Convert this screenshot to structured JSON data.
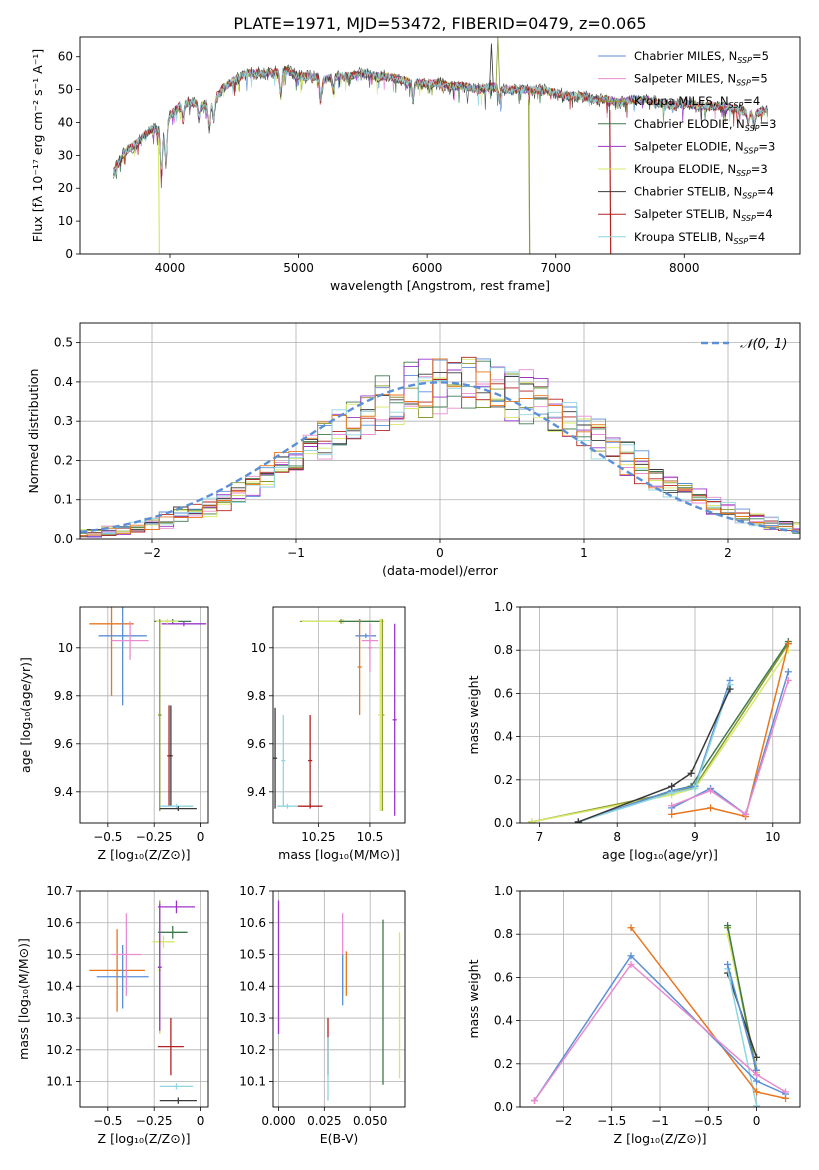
{
  "figure_title": "PLATE=1971, MJD=53472, FIBERID=0479, z=0.065",
  "colors": {
    "cmiles": "#5b8fd6",
    "smiles": "#e98bd0",
    "kmiles": "#8a9a2a",
    "celodie": "#3f7a4f",
    "selodie": "#9b35c9",
    "kelodie": "#d8e86a",
    "cstelib": "#3a3a3a",
    "sstelib": "#b22222",
    "kstelib": "#8fd6e0",
    "orange": "#e8761e"
  },
  "chart_data": [
    {
      "id": "spectrum",
      "type": "line",
      "title": "PLATE=1971, MJD=53472, FIBERID=0479, z=0.065",
      "xlabel": "wavelength [Angstrom, rest frame]",
      "ylabel": "Flux [fλ 10⁻¹⁷ erg cm⁻² s⁻¹ A⁻¹]",
      "xlim": [
        3300,
        8900
      ],
      "ylim": [
        0,
        66
      ],
      "xticks": [
        4000,
        5000,
        6000,
        7000,
        8000
      ],
      "yticks": [
        0,
        10,
        20,
        30,
        40,
        50,
        60
      ],
      "grid": false,
      "legend_position": "top-right",
      "legend": [
        {
          "label": "Chabrier MILES, N",
          "sub": "SSP",
          "val": "=5",
          "color": "#5b8fd6"
        },
        {
          "label": "Salpeter MILES, N",
          "sub": "SSP",
          "val": "=5",
          "color": "#e98bd0"
        },
        {
          "label": "Kroupa MILES, N",
          "sub": "SSP",
          "val": "=4",
          "color": "#8a9a2a"
        },
        {
          "label": "Chabrier ELODIE, N",
          "sub": "SSP",
          "val": "=3",
          "color": "#3f7a4f"
        },
        {
          "label": "Salpeter ELODIE, N",
          "sub": "SSP",
          "val": "=3",
          "color": "#9b35c9"
        },
        {
          "label": "Kroupa ELODIE, N",
          "sub": "SSP",
          "val": "=3",
          "color": "#d8e86a"
        },
        {
          "label": "Chabrier STELIB, N",
          "sub": "SSP",
          "val": "=4",
          "color": "#3a3a3a"
        },
        {
          "label": "Salpeter STELIB, N",
          "sub": "SSP",
          "val": "=4",
          "color": "#b22222"
        },
        {
          "label": "Kroupa STELIB, N",
          "sub": "SSP",
          "val": "=4",
          "color": "#8fd6e0"
        }
      ],
      "spectrum_knots": [
        [
          3560,
          25
        ],
        [
          3650,
          31
        ],
        [
          3750,
          34
        ],
        [
          3850,
          38
        ],
        [
          3950,
          38
        ],
        [
          4000,
          42
        ],
        [
          4100,
          46
        ],
        [
          4200,
          46
        ],
        [
          4300,
          45
        ],
        [
          4400,
          50
        ],
        [
          4500,
          53
        ],
        [
          4600,
          55
        ],
        [
          4700,
          55
        ],
        [
          4800,
          55
        ],
        [
          4900,
          56
        ],
        [
          5000,
          54
        ],
        [
          5100,
          54
        ],
        [
          5200,
          53
        ],
        [
          5300,
          54
        ],
        [
          5400,
          54
        ],
        [
          5500,
          55
        ],
        [
          5600,
          54
        ],
        [
          5700,
          54
        ],
        [
          5800,
          53
        ],
        [
          5900,
          52
        ],
        [
          6000,
          52
        ],
        [
          6100,
          52
        ],
        [
          6200,
          51
        ],
        [
          6300,
          51
        ],
        [
          6400,
          50
        ],
        [
          6500,
          51
        ],
        [
          6600,
          50
        ],
        [
          6700,
          50
        ],
        [
          6800,
          50
        ],
        [
          6900,
          50
        ],
        [
          7000,
          49
        ],
        [
          7100,
          48
        ],
        [
          7200,
          48
        ],
        [
          7300,
          47
        ],
        [
          7400,
          47
        ],
        [
          7500,
          46
        ],
        [
          7600,
          47
        ],
        [
          7700,
          47
        ],
        [
          7800,
          46
        ],
        [
          7900,
          45
        ],
        [
          8000,
          46
        ],
        [
          8100,
          45
        ],
        [
          8200,
          45
        ],
        [
          8300,
          45
        ],
        [
          8400,
          44
        ],
        [
          8500,
          43
        ],
        [
          8600,
          43
        ],
        [
          8650,
          44
        ]
      ],
      "absorption_lines": [
        [
          3934,
          14
        ],
        [
          3969,
          12
        ],
        [
          4102,
          6
        ],
        [
          4227,
          4
        ],
        [
          4304,
          7
        ],
        [
          4340,
          6
        ],
        [
          4861,
          7
        ],
        [
          5175,
          6
        ],
        [
          5270,
          4
        ],
        [
          5890,
          5
        ],
        [
          6563,
          3
        ],
        [
          8498,
          3
        ],
        [
          8542,
          4
        ],
        [
          8662,
          3
        ]
      ],
      "dropouts": [
        [
          3910,
          "#d8e86a"
        ],
        [
          6790,
          "#8a9a2a"
        ],
        [
          7420,
          "#b22222"
        ]
      ],
      "spikes": [
        [
          6500,
          64,
          "#3a3a3a"
        ],
        [
          6550,
          66,
          "#8a9a2a"
        ]
      ]
    },
    {
      "id": "residuals",
      "type": "histogram",
      "xlabel": "(data-model)/error",
      "ylabel": "Normed distribution",
      "xlim": [
        -2.5,
        2.5
      ],
      "ylim": [
        0,
        0.55
      ],
      "xticks": [
        -2,
        -1,
        0,
        1,
        2
      ],
      "yticks": [
        0.0,
        0.1,
        0.2,
        0.3,
        0.4,
        0.5
      ],
      "grid": true,
      "legend_position": "top-right",
      "legend": "𝒩(0, 1)",
      "bin_width": 0.1,
      "normal_curve": {
        "mu": 0,
        "sigma": 1
      }
    },
    {
      "id": "age-vs-Z",
      "type": "errorbar",
      "xlabel": "Z [log₁₀(Z/Z⊙)]",
      "ylabel": "age  [log₁₀(age/yr)]",
      "xlim": [
        -0.65,
        0.04
      ],
      "ylim": [
        9.27,
        10.17
      ],
      "xticks": [
        -0.5,
        -0.25,
        0.0
      ],
      "yticks": [
        9.4,
        9.6,
        9.8,
        10.0
      ],
      "grid": true,
      "points": [
        {
          "x": -0.48,
          "xerr": 0.12,
          "y": 10.1,
          "yerr": 0.3,
          "color": "#e8761e"
        },
        {
          "x": -0.42,
          "xerr": 0.13,
          "y": 10.05,
          "yerr": 0.29,
          "color": "#5b8fd6"
        },
        {
          "x": -0.38,
          "xerr": 0.1,
          "y": 10.03,
          "yerr": 0.08,
          "color": "#e98bd0"
        },
        {
          "x": -0.15,
          "xerr": 0.1,
          "y": 10.11,
          "yerr": 0.01,
          "color": "#3f7a4f"
        },
        {
          "x": -0.09,
          "xerr": 0.12,
          "y": 10.1,
          "yerr": 0.01,
          "color": "#9b35c9"
        },
        {
          "x": -0.18,
          "xerr": 0.06,
          "y": 10.11,
          "yerr": 0.01,
          "color": "#d8e86a"
        },
        {
          "x": -0.22,
          "xerr": 0.01,
          "y": 9.72,
          "yerr": 0.4,
          "color": "#8a9a2a"
        },
        {
          "x": -0.17,
          "xerr": 0.01,
          "y": 9.55,
          "yerr": 0.21,
          "color": "#b22222"
        },
        {
          "x": -0.16,
          "xerr": 0.01,
          "y": 9.55,
          "yerr": 0.21,
          "color": "#3a3a3a"
        },
        {
          "x": -0.13,
          "xerr": 0.09,
          "y": 9.34,
          "yerr": 0.01,
          "color": "#8fd6e0"
        },
        {
          "x": -0.12,
          "xerr": 0.1,
          "y": 9.33,
          "yerr": 0.01,
          "color": "#3a3a3a"
        }
      ]
    },
    {
      "id": "age-vs-mass",
      "type": "errorbar",
      "xlabel": "mass [log₁₀(M/M⊙)]",
      "ylabel": "",
      "xlim": [
        10.03,
        10.67
      ],
      "ylim": [
        9.27,
        10.17
      ],
      "xticks": [
        10.25,
        10.5
      ],
      "yticks": [
        9.4,
        9.6,
        9.8,
        10.0
      ],
      "grid": true,
      "points": [
        {
          "x": 10.36,
          "xerr": 0.2,
          "y": 10.11,
          "yerr": 0.01,
          "color": "#8a9a2a"
        },
        {
          "x": 10.37,
          "xerr": 0.2,
          "y": 10.11,
          "yerr": 0.01,
          "color": "#d8e86a"
        },
        {
          "x": 10.45,
          "xerr": 0.1,
          "y": 10.11,
          "yerr": 0.01,
          "color": "#3f7a4f"
        },
        {
          "x": 10.48,
          "xerr": 0.05,
          "y": 10.05,
          "yerr": 0.01,
          "color": "#5b8fd6"
        },
        {
          "x": 10.5,
          "xerr": 0.04,
          "y": 10.03,
          "yerr": 0.01,
          "color": "#e98bd0"
        },
        {
          "x": 10.45,
          "xerr": 0.01,
          "y": 9.92,
          "yerr": 0.2,
          "color": "#e8761e"
        },
        {
          "x": 10.5,
          "xerr": 0.01,
          "y": 10.0,
          "yerr": 0.1,
          "color": "#e98bd0"
        },
        {
          "x": 10.56,
          "xerr": 0.01,
          "y": 9.72,
          "yerr": 0.4,
          "color": "#8a9a2a"
        },
        {
          "x": 10.62,
          "xerr": 0.01,
          "y": 9.7,
          "yerr": 0.4,
          "color": "#9b35c9"
        },
        {
          "x": 10.55,
          "xerr": 0.01,
          "y": 9.72,
          "yerr": 0.4,
          "color": "#d8e86a"
        },
        {
          "x": 10.21,
          "xerr": 0.01,
          "y": 9.53,
          "yerr": 0.19,
          "color": "#b22222"
        },
        {
          "x": 10.21,
          "xerr": 0.06,
          "y": 9.34,
          "yerr": 0.01,
          "color": "#b22222"
        },
        {
          "x": 10.08,
          "xerr": 0.01,
          "y": 9.53,
          "yerr": 0.19,
          "color": "#8fd6e0"
        },
        {
          "x": 10.1,
          "xerr": 0.05,
          "y": 9.34,
          "yerr": 0.01,
          "color": "#8fd6e0"
        },
        {
          "x": 10.04,
          "xerr": 0.01,
          "y": 9.54,
          "yerr": 0.21,
          "color": "#3a3a3a"
        }
      ]
    },
    {
      "id": "weight-vs-age",
      "type": "line",
      "xlabel": "age  [log₁₀(age/yr)]",
      "ylabel": "mass weight",
      "xlim": [
        6.75,
        10.35
      ],
      "ylim": [
        0,
        1
      ],
      "xticks": [
        7,
        8,
        9,
        10
      ],
      "yticks": [
        0.0,
        0.2,
        0.4,
        0.6,
        0.8,
        1.0
      ],
      "grid": true,
      "series": [
        {
          "color": "#8a9a2a",
          "x": [
            6.9,
            8.7,
            9.0,
            10.2
          ],
          "y": [
            0.005,
            0.14,
            0.17,
            0.83
          ]
        },
        {
          "color": "#d8e86a",
          "x": [
            6.9,
            8.7,
            9.0,
            10.2
          ],
          "y": [
            0.005,
            0.13,
            0.16,
            0.8
          ]
        },
        {
          "color": "#3f7a4f",
          "x": [
            7.5,
            8.7,
            8.95,
            10.2
          ],
          "y": [
            0.005,
            0.15,
            0.17,
            0.84
          ]
        },
        {
          "color": "#5b8fd6",
          "x": [
            7.5,
            8.7,
            9.0,
            9.45
          ],
          "y": [
            0.005,
            0.15,
            0.17,
            0.66
          ]
        },
        {
          "color": "#8fd6e0",
          "x": [
            7.5,
            8.7,
            9.0,
            9.45
          ],
          "y": [
            0.005,
            0.14,
            0.16,
            0.64
          ]
        },
        {
          "color": "#3a3a3a",
          "x": [
            7.5,
            8.7,
            8.95,
            9.45
          ],
          "y": [
            0.005,
            0.17,
            0.23,
            0.62
          ]
        },
        {
          "color": "#e8761e",
          "x": [
            8.7,
            9.2,
            9.65,
            10.2
          ],
          "y": [
            0.04,
            0.07,
            0.03,
            0.83
          ]
        },
        {
          "color": "#5b8fd6",
          "x": [
            8.7,
            9.2,
            9.65,
            10.2
          ],
          "y": [
            0.07,
            0.16,
            0.04,
            0.7
          ]
        },
        {
          "color": "#e98bd0",
          "x": [
            8.7,
            9.2,
            9.65,
            10.2
          ],
          "y": [
            0.08,
            0.15,
            0.04,
            0.66
          ]
        }
      ]
    },
    {
      "id": "mass-vs-Z",
      "type": "errorbar",
      "xlabel": "Z [log₁₀(Z/Z⊙)]",
      "ylabel": "mass [log₁₀(M/M⊙)]",
      "xlim": [
        -0.65,
        0.04
      ],
      "ylim": [
        10.02,
        10.7
      ],
      "xticks": [
        -0.5,
        -0.25,
        0.0
      ],
      "yticks": [
        10.1,
        10.2,
        10.3,
        10.4,
        10.5,
        10.6,
        10.7
      ],
      "grid": true,
      "points": [
        {
          "x": -0.45,
          "xerr": 0.15,
          "y": 10.45,
          "yerr": 0.13,
          "color": "#e8761e"
        },
        {
          "x": -0.42,
          "xerr": 0.14,
          "y": 10.43,
          "yerr": 0.1,
          "color": "#5b8fd6"
        },
        {
          "x": -0.4,
          "xerr": 0.08,
          "y": 10.5,
          "yerr": 0.13,
          "color": "#e98bd0"
        },
        {
          "x": -0.15,
          "xerr": 0.08,
          "y": 10.57,
          "yerr": 0.02,
          "color": "#3f7a4f"
        },
        {
          "x": -0.13,
          "xerr": 0.1,
          "y": 10.65,
          "yerr": 0.02,
          "color": "#9b35c9"
        },
        {
          "x": -0.2,
          "xerr": 0.06,
          "y": 10.54,
          "yerr": 0.02,
          "color": "#d8e86a"
        },
        {
          "x": -0.22,
          "xerr": 0.01,
          "y": 10.46,
          "yerr": 0.21,
          "color": "#8a9a2a"
        },
        {
          "x": -0.22,
          "xerr": 0.01,
          "y": 10.45,
          "yerr": 0.2,
          "color": "#d8e86a"
        },
        {
          "x": -0.22,
          "xerr": 0.01,
          "y": 10.46,
          "yerr": 0.2,
          "color": "#9b35c9"
        },
        {
          "x": -0.16,
          "xerr": 0.07,
          "y": 10.21,
          "yerr": 0.09,
          "color": "#b22222"
        },
        {
          "x": -0.13,
          "xerr": 0.09,
          "y": 10.085,
          "yerr": 0.01,
          "color": "#8fd6e0"
        },
        {
          "x": -0.12,
          "xerr": 0.1,
          "y": 10.04,
          "yerr": 0.01,
          "color": "#3a3a3a"
        }
      ]
    },
    {
      "id": "mass-vs-ebv",
      "type": "errorbar",
      "xlabel": "E(B-V)",
      "ylabel": "",
      "xlim": [
        -0.003,
        0.069
      ],
      "ylim": [
        10.02,
        10.7
      ],
      "xticks": [
        0.0,
        0.025,
        0.05
      ],
      "xtick_labels": [
        "0.000",
        "0.025",
        "0.050"
      ],
      "yticks": [
        10.1,
        10.2,
        10.3,
        10.4,
        10.5,
        10.6,
        10.7
      ],
      "grid": true,
      "points": [
        {
          "x": 0.0,
          "xerr": 0,
          "y": 10.46,
          "yerr": 0.21,
          "color": "#9b35c9"
        },
        {
          "x": 0.027,
          "xerr": 0,
          "y": 10.21,
          "yerr": 0.09,
          "color": "#b22222"
        },
        {
          "x": 0.027,
          "xerr": 0,
          "y": 10.14,
          "yerr": 0.1,
          "color": "#8fd6e0"
        },
        {
          "x": 0.035,
          "xerr": 0,
          "y": 10.5,
          "yerr": 0.13,
          "color": "#e98bd0"
        },
        {
          "x": 0.035,
          "xerr": 0,
          "y": 10.42,
          "yerr": 0.08,
          "color": "#5b8fd6"
        },
        {
          "x": 0.037,
          "xerr": 0,
          "y": 10.44,
          "yerr": 0.07,
          "color": "#e8761e"
        },
        {
          "x": 0.057,
          "xerr": 0,
          "y": 10.35,
          "yerr": 0.26,
          "color": "#3f7a4f"
        },
        {
          "x": 0.066,
          "xerr": 0,
          "y": 10.34,
          "yerr": 0.23,
          "color": "#d8e86a"
        }
      ]
    },
    {
      "id": "weight-vs-Z",
      "type": "line",
      "xlabel": "Z [log₁₀(Z/Z⊙)]",
      "ylabel": "mass weight",
      "xlim": [
        -2.45,
        0.45
      ],
      "ylim": [
        0,
        1
      ],
      "xticks": [
        -2.0,
        -1.5,
        -1.0,
        -0.5,
        0.0
      ],
      "yticks": [
        0.0,
        0.2,
        0.4,
        0.6,
        0.8,
        1.0
      ],
      "grid": true,
      "series": [
        {
          "color": "#8a9a2a",
          "x": [
            -0.3,
            0.0
          ],
          "y": [
            0.83,
            0.17
          ]
        },
        {
          "color": "#d8e86a",
          "x": [
            -0.3,
            0.0
          ],
          "y": [
            0.8,
            0.16
          ]
        },
        {
          "color": "#3f7a4f",
          "x": [
            -0.3,
            0.0
          ],
          "y": [
            0.84,
            0.15
          ]
        },
        {
          "color": "#3a3a3a",
          "x": [
            -0.3,
            0.0
          ],
          "y": [
            0.62,
            0.23
          ]
        },
        {
          "color": "#8fd6e0",
          "x": [
            -0.3,
            0.0
          ],
          "y": [
            0.64,
            0.005
          ]
        },
        {
          "color": "#5b8fd6",
          "x": [
            -0.3,
            0.0
          ],
          "y": [
            0.66,
            0.17
          ]
        },
        {
          "color": "#e8761e",
          "x": [
            -1.3,
            0.0,
            0.3
          ],
          "y": [
            0.83,
            0.07,
            0.04
          ]
        },
        {
          "color": "#5b8fd6",
          "x": [
            -2.3,
            -1.3,
            0.0,
            0.3
          ],
          "y": [
            0.03,
            0.7,
            0.12,
            0.06
          ]
        },
        {
          "color": "#e98bd0",
          "x": [
            -2.3,
            -1.3,
            0.0,
            0.3
          ],
          "y": [
            0.03,
            0.66,
            0.15,
            0.07
          ]
        }
      ]
    }
  ]
}
